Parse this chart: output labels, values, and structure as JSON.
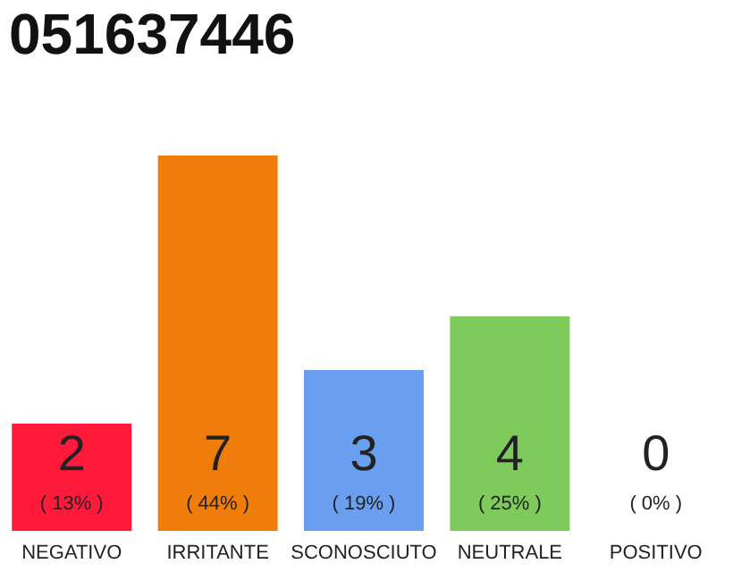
{
  "chart_data": {
    "type": "bar",
    "title": "051637446",
    "categories": [
      "NEGATIVO",
      "IRRITANTE",
      "SCONOSCIUTO",
      "NEUTRALE",
      "POSITIVO"
    ],
    "values": [
      2,
      7,
      3,
      4,
      0
    ],
    "colors": [
      "#ff1a3c",
      "#f07d0a",
      "#6a9fef",
      "#7ecb5c",
      "#bbbbbb"
    ],
    "value_labels": [
      "2",
      "7",
      "3",
      "4",
      "0"
    ],
    "annotations": [
      {
        "text": "( 13% )",
        "x": "NEGATIVO",
        "y": 0
      },
      {
        "text": "( 44% )",
        "x": "IRRITANTE",
        "y": 0
      },
      {
        "text": "( 19% )",
        "x": "SCONOSCIUTO",
        "y": 0
      },
      {
        "text": "( 25% )",
        "x": "NEUTRALE",
        "y": 0
      },
      {
        "text": "( 0% )",
        "x": "POSITIVO",
        "y": 0
      }
    ],
    "tick_labels": "x",
    "grid": false
  }
}
